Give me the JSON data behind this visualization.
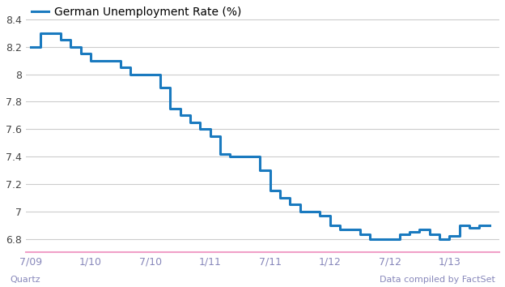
{
  "title": "German Unemployment Rate (%)",
  "line_color": "#1a7abf",
  "line_width": 2.2,
  "background_color": "#ffffff",
  "plot_bg_color": "#ffffff",
  "ylabel_color": "#444444",
  "xlabel_color": "#8888bb",
  "grid_color": "#cccccc",
  "pink_line_color": "#f0a0c8",
  "quartz_text": "Quartz",
  "factset_text": "Data compiled by FactSet",
  "ylim": [
    6.7,
    8.5
  ],
  "yticks": [
    6.8,
    7.0,
    7.2,
    7.4,
    7.6,
    7.8,
    8.0,
    8.2,
    8.4
  ],
  "x_tick_labels": [
    "7/09",
    "1/10",
    "7/10",
    "1/11",
    "7/11",
    "1/12",
    "7/12",
    "1/13"
  ],
  "x_tick_positions": [
    0,
    6,
    12,
    18,
    24,
    30,
    36,
    42
  ],
  "xlim": [
    -0.5,
    47
  ],
  "data_x": [
    0,
    1,
    2,
    3,
    4,
    5,
    6,
    7,
    8,
    9,
    10,
    11,
    12,
    13,
    14,
    15,
    16,
    17,
    18,
    19,
    20,
    21,
    22,
    23,
    24,
    25,
    26,
    27,
    28,
    29,
    30,
    31,
    32,
    33,
    34,
    35,
    36,
    37,
    38,
    39,
    40,
    41,
    42,
    43,
    44,
    45,
    46
  ],
  "data_y": [
    8.2,
    8.3,
    8.3,
    8.25,
    8.2,
    8.15,
    8.1,
    8.1,
    8.1,
    8.05,
    8.0,
    8.0,
    8.0,
    7.9,
    7.75,
    7.7,
    7.65,
    7.6,
    7.55,
    7.42,
    7.4,
    7.4,
    7.4,
    7.3,
    7.15,
    7.1,
    7.05,
    7.0,
    7.0,
    6.97,
    6.9,
    6.87,
    6.87,
    6.83,
    6.8,
    6.8,
    6.8,
    6.83,
    6.85,
    6.87,
    6.83,
    6.8,
    6.82,
    6.9,
    6.88,
    6.9,
    6.9
  ]
}
